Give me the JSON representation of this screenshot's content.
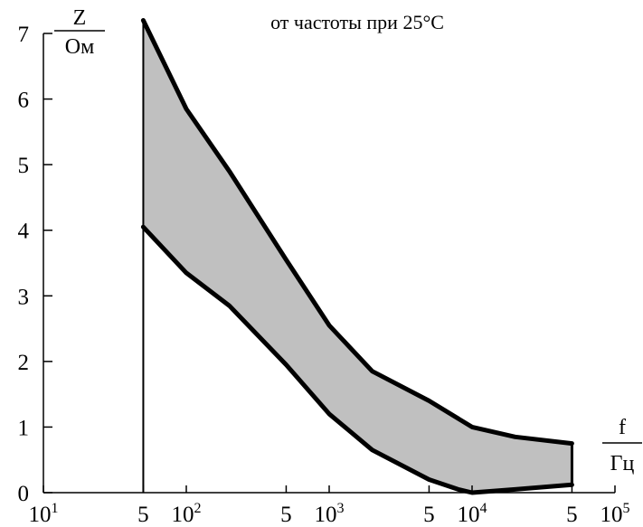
{
  "chart_data": {
    "type": "area",
    "title": "от частоты при 25°С",
    "ylabel": {
      "numerator": "Z",
      "denominator": "Ом"
    },
    "xlabel": {
      "numerator": "f",
      "denominator": "Гц"
    },
    "x_scale": "log",
    "xlim": [
      10,
      100000
    ],
    "ylim": [
      0,
      7
    ],
    "x_ticks": [
      {
        "value": 10,
        "base": "10",
        "exp": "1"
      },
      {
        "value": 50,
        "base": "5",
        "exp": ""
      },
      {
        "value": 100,
        "base": "10",
        "exp": "2"
      },
      {
        "value": 500,
        "base": "5",
        "exp": ""
      },
      {
        "value": 1000,
        "base": "10",
        "exp": "3"
      },
      {
        "value": 5000,
        "base": "5",
        "exp": ""
      },
      {
        "value": 10000,
        "base": "10",
        "exp": "4"
      },
      {
        "value": 50000,
        "base": "5",
        "exp": ""
      },
      {
        "value": 100000,
        "base": "10",
        "exp": "5"
      }
    ],
    "y_ticks": [
      0,
      1,
      2,
      3,
      4,
      5,
      6,
      7
    ],
    "series": [
      {
        "role": "upper",
        "x": [
          50,
          100,
          200,
          500,
          1000,
          2000,
          5000,
          10000,
          20000,
          50000
        ],
        "y": [
          7.2,
          5.85,
          4.9,
          3.55,
          2.55,
          1.85,
          1.4,
          1.0,
          0.85,
          0.75
        ]
      },
      {
        "role": "lower",
        "x": [
          50,
          100,
          200,
          500,
          1000,
          2000,
          5000,
          8000,
          10000,
          20000,
          50000
        ],
        "y": [
          4.05,
          3.35,
          2.85,
          1.95,
          1.2,
          0.65,
          0.2,
          0.05,
          0.0,
          0.05,
          0.12
        ]
      }
    ],
    "fill_color": "#c0c0c0",
    "line_color": "#000000"
  }
}
